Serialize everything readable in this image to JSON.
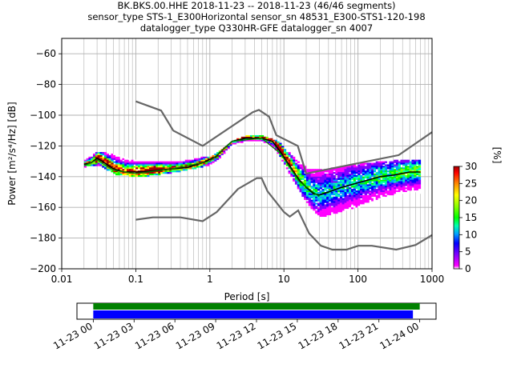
{
  "title": {
    "line1": "BK.BKS.00.HHE   2018-11-23 -- 2018-11-23  (46/46 segments)",
    "line2": "sensor_type STS-1_E300Horizontal sensor_sn 48531_E300-STS1-120-198",
    "line3": "datalogger_type Q330HR-GFE datalogger_sn 4007"
  },
  "chart_data": {
    "type": "heatmap",
    "xlabel": "Period [s]",
    "ylabel": "Power [m²/s⁴/Hz] [dB]",
    "xscale": "log",
    "xlim": [
      0.01,
      1000
    ],
    "ylim": [
      -200,
      -50
    ],
    "xticks": [
      {
        "value": 0.01,
        "label": "0.01"
      },
      {
        "value": 0.1,
        "label": "0.1"
      },
      {
        "value": 1,
        "label": "1"
      },
      {
        "value": 10,
        "label": "10"
      },
      {
        "value": 100,
        "label": "100"
      },
      {
        "value": 1000,
        "label": "1000"
      }
    ],
    "yticks": [
      {
        "value": -60,
        "label": "−60"
      },
      {
        "value": -80,
        "label": "−80"
      },
      {
        "value": -100,
        "label": "−100"
      },
      {
        "value": -120,
        "label": "−120"
      },
      {
        "value": -140,
        "label": "−140"
      },
      {
        "value": -160,
        "label": "−160"
      },
      {
        "value": -180,
        "label": "−180"
      },
      {
        "value": -200,
        "label": "−200"
      }
    ],
    "grid": true,
    "colorbar": {
      "label": "[%]",
      "range": [
        0,
        30
      ],
      "ticks": [
        {
          "value": 0,
          "label": "0"
        },
        {
          "value": 5,
          "label": "5"
        },
        {
          "value": 10,
          "label": "10"
        },
        {
          "value": 15,
          "label": "15"
        },
        {
          "value": 20,
          "label": "20"
        },
        {
          "value": 25,
          "label": "25"
        },
        {
          "value": 30,
          "label": "30"
        }
      ],
      "colors": [
        "#ffffff",
        "#ff00ff",
        "#8000ff",
        "#0000ff",
        "#00a0ff",
        "#00ffb0",
        "#00ff00",
        "#80ff00",
        "#ffff00",
        "#ff8000",
        "#ff0000",
        "#a00000"
      ]
    },
    "noise_models": {
      "high": [
        [
          0.1,
          -91
        ],
        [
          0.22,
          -97
        ],
        [
          0.32,
          -110
        ],
        [
          0.8,
          -120
        ],
        [
          3.8,
          -98
        ],
        [
          4.6,
          -96.5
        ],
        [
          6.3,
          -101
        ],
        [
          7.9,
          -113
        ],
        [
          15.4,
          -120
        ],
        [
          20,
          -138
        ],
        [
          354.8,
          -126
        ],
        [
          1000,
          -111
        ]
      ],
      "low": [
        [
          0.1,
          -168
        ],
        [
          0.17,
          -166.5
        ],
        [
          0.4,
          -166.5
        ],
        [
          0.8,
          -169
        ],
        [
          1.24,
          -163
        ],
        [
          2.4,
          -148
        ],
        [
          4.3,
          -141
        ],
        [
          5,
          -141
        ],
        [
          6,
          -149.5
        ],
        [
          10,
          -163
        ],
        [
          12,
          -166
        ],
        [
          15.6,
          -162
        ],
        [
          21.9,
          -177
        ],
        [
          31.6,
          -185
        ],
        [
          45,
          -187.5
        ],
        [
          70,
          -187.5
        ],
        [
          101,
          -185
        ],
        [
          154,
          -185
        ],
        [
          328,
          -187.5
        ],
        [
          600,
          -184.5
        ],
        [
          1000,
          -178
        ]
      ]
    },
    "series": [
      {
        "name": "mean",
        "color": "#000000",
        "points": [
          [
            0.02,
            -132
          ],
          [
            0.025,
            -131
          ],
          [
            0.03,
            -128
          ],
          [
            0.035,
            -130
          ],
          [
            0.05,
            -135
          ],
          [
            0.07,
            -137
          ],
          [
            0.1,
            -137
          ],
          [
            0.15,
            -136.5
          ],
          [
            0.3,
            -135
          ],
          [
            0.5,
            -134
          ],
          [
            0.8,
            -131
          ],
          [
            1.2,
            -127
          ],
          [
            1.6,
            -121
          ],
          [
            2,
            -117
          ],
          [
            3,
            -115
          ],
          [
            5,
            -115
          ],
          [
            7,
            -117
          ],
          [
            9,
            -124
          ],
          [
            12,
            -133
          ],
          [
            16,
            -142
          ],
          [
            20,
            -147
          ],
          [
            25,
            -151
          ],
          [
            30,
            -152
          ],
          [
            40,
            -150
          ],
          [
            60,
            -147
          ],
          [
            100,
            -144
          ],
          [
            200,
            -140
          ],
          [
            300,
            -139
          ],
          [
            500,
            -137
          ],
          [
            700,
            -137
          ]
        ]
      },
      {
        "name": "mode",
        "color": "#008000",
        "points": [
          [
            0.02,
            -133
          ],
          [
            0.03,
            -129
          ],
          [
            0.05,
            -136
          ],
          [
            0.1,
            -138
          ],
          [
            0.3,
            -135
          ],
          [
            1,
            -130
          ],
          [
            2,
            -117
          ],
          [
            5,
            -115
          ],
          [
            9,
            -125
          ],
          [
            16,
            -143
          ],
          [
            30,
            -153
          ]
        ]
      },
      {
        "name": "pdf_band_upper",
        "color": "#00c8ff",
        "points": [
          [
            0.02,
            -130
          ],
          [
            0.03,
            -124
          ],
          [
            0.05,
            -126
          ],
          [
            0.1,
            -130
          ],
          [
            0.3,
            -131
          ],
          [
            1,
            -127
          ],
          [
            2,
            -117
          ],
          [
            3,
            -114
          ],
          [
            5,
            -114
          ],
          [
            8,
            -117
          ],
          [
            12,
            -126
          ],
          [
            20,
            -135
          ],
          [
            30,
            -136
          ],
          [
            100,
            -132
          ],
          [
            300,
            -130
          ],
          [
            700,
            -130
          ]
        ]
      },
      {
        "name": "pdf_band_lower",
        "color": "#ff00ff",
        "points": [
          [
            0.02,
            -134
          ],
          [
            0.03,
            -133
          ],
          [
            0.05,
            -139
          ],
          [
            0.1,
            -141
          ],
          [
            0.3,
            -138
          ],
          [
            1,
            -133
          ],
          [
            2,
            -121
          ],
          [
            3,
            -118
          ],
          [
            5,
            -118
          ],
          [
            8,
            -125
          ],
          [
            12,
            -140
          ],
          [
            20,
            -158
          ],
          [
            30,
            -167
          ],
          [
            100,
            -160
          ],
          [
            300,
            -152
          ],
          [
            700,
            -151
          ]
        ]
      }
    ]
  },
  "timeline": {
    "xticks": [
      {
        "value": 0,
        "label": "11-23 00"
      },
      {
        "value": 3,
        "label": "11-23 03"
      },
      {
        "value": 6,
        "label": "11-23 06"
      },
      {
        "value": 9,
        "label": "11-23 09"
      },
      {
        "value": 12,
        "label": "11-23 12"
      },
      {
        "value": 15,
        "label": "11-23 15"
      },
      {
        "value": 18,
        "label": "11-23 18"
      },
      {
        "value": 21,
        "label": "11-23 21"
      },
      {
        "value": 24,
        "label": "11-24 00"
      }
    ],
    "xlim": [
      -1.2,
      25.2
    ],
    "bars": [
      {
        "name": "data-available",
        "start": 0,
        "end": 24,
        "color": "#008000"
      },
      {
        "name": "used-segments",
        "start": 0,
        "end": 23.5,
        "color": "#0000ff"
      }
    ]
  }
}
